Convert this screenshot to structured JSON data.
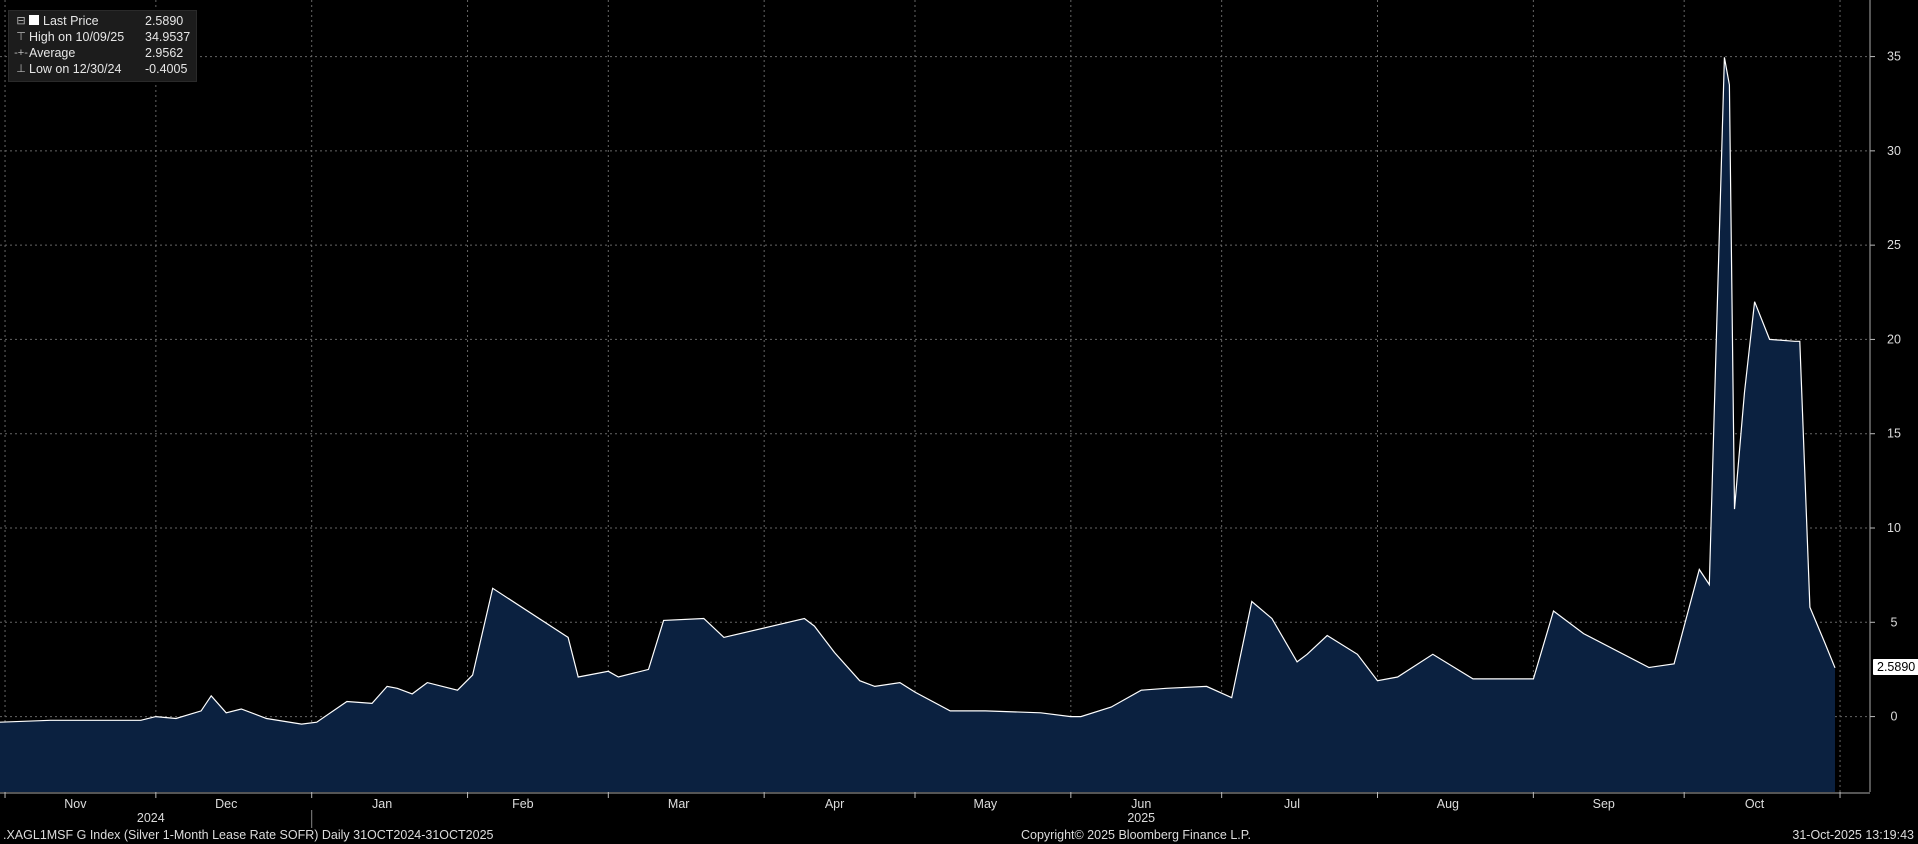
{
  "legend": {
    "items": [
      {
        "label": "Last Price",
        "value": "2.5890"
      },
      {
        "label": "High on 10/09/25",
        "value": "34.9537"
      },
      {
        "label": "Average",
        "value": "2.9562"
      },
      {
        "label": "Low on 12/30/24",
        "value": "-0.4005"
      }
    ]
  },
  "footer": {
    "left": ".XAGL1MSF G Index (Silver 1-Month Lease Rate SOFR) Daily 31OCT2024-31OCT2025",
    "center": "Copyright© 2025 Bloomberg Finance L.P.",
    "right": "31-Oct-2025 13:19:43"
  },
  "chart_data": {
    "type": "area",
    "colors": {
      "line": "#ffffff",
      "fill": "#0b2140",
      "grid": "#666666",
      "background": "#000000"
    },
    "ylim": [
      -4,
      38
    ],
    "yticks": [
      0,
      5,
      10,
      15,
      20,
      25,
      30,
      35
    ],
    "x_range": [
      "2024-10-31",
      "2025-10-31"
    ],
    "month_ticks": [
      {
        "label": "Nov",
        "date": "2024-11-15"
      },
      {
        "label": "Dec",
        "date": "2024-12-15"
      },
      {
        "label": "Jan",
        "date": "2025-01-15"
      },
      {
        "label": "Feb",
        "date": "2025-02-12"
      },
      {
        "label": "Mar",
        "date": "2025-03-15"
      },
      {
        "label": "Apr",
        "date": "2025-04-15"
      },
      {
        "label": "May",
        "date": "2025-05-15"
      },
      {
        "label": "Jun",
        "date": "2025-06-15"
      },
      {
        "label": "Jul",
        "date": "2025-07-15"
      },
      {
        "label": "Aug",
        "date": "2025-08-15"
      },
      {
        "label": "Sep",
        "date": "2025-09-15"
      },
      {
        "label": "Oct",
        "date": "2025-10-15"
      }
    ],
    "year_labels": [
      {
        "label": "2024",
        "date": "2024-11-30"
      },
      {
        "label": "2025",
        "date": "2025-06-15"
      }
    ],
    "last_value_label": "2.5890",
    "series": [
      {
        "dates": [
          "2024-10-31",
          "2024-11-10",
          "2024-11-28",
          "2024-12-01",
          "2024-12-05",
          "2024-12-10",
          "2024-12-12",
          "2024-12-15",
          "2024-12-18",
          "2024-12-23",
          "2024-12-30",
          "2025-01-02",
          "2025-01-08",
          "2025-01-13",
          "2025-01-16",
          "2025-01-18",
          "2025-01-21",
          "2025-01-24",
          "2025-01-30",
          "2025-02-02",
          "2025-02-06",
          "2025-02-21",
          "2025-02-23",
          "2025-03-01",
          "2025-03-03",
          "2025-03-09",
          "2025-03-12",
          "2025-03-20",
          "2025-03-24",
          "2025-04-09",
          "2025-04-11",
          "2025-04-15",
          "2025-04-20",
          "2025-04-23",
          "2025-04-28",
          "2025-05-01",
          "2025-05-08",
          "2025-05-15",
          "2025-05-26",
          "2025-06-01",
          "2025-06-03",
          "2025-06-09",
          "2025-06-15",
          "2025-06-20",
          "2025-06-28",
          "2025-07-03",
          "2025-07-07",
          "2025-07-11",
          "2025-07-16",
          "2025-07-18",
          "2025-07-22",
          "2025-07-28",
          "2025-08-01",
          "2025-08-05",
          "2025-08-12",
          "2025-08-20",
          "2025-09-01",
          "2025-09-05",
          "2025-09-11",
          "2025-09-24",
          "2025-09-29",
          "2025-10-04",
          "2025-10-06",
          "2025-10-09",
          "2025-10-10",
          "2025-10-11",
          "2025-10-13",
          "2025-10-15",
          "2025-10-18",
          "2025-10-23",
          "2025-10-24",
          "2025-10-26",
          "2025-10-29",
          "2025-10-31"
        ],
        "values": [
          -0.3,
          -0.2,
          -0.2,
          0.0,
          -0.1,
          0.3,
          1.1,
          0.2,
          0.4,
          -0.1,
          -0.4,
          -0.3,
          0.8,
          0.7,
          1.6,
          1.5,
          1.2,
          1.8,
          1.4,
          2.2,
          6.8,
          4.2,
          2.1,
          2.4,
          2.1,
          2.5,
          5.1,
          5.2,
          4.2,
          5.2,
          4.8,
          3.4,
          1.9,
          1.6,
          1.8,
          1.3,
          0.3,
          0.3,
          0.2,
          0.0,
          0.0,
          0.5,
          1.4,
          1.5,
          1.6,
          1.0,
          6.1,
          5.2,
          2.9,
          3.3,
          4.3,
          3.3,
          1.9,
          2.1,
          3.3,
          2.0,
          2.0,
          5.6,
          4.4,
          2.6,
          2.8,
          7.8,
          7.0,
          34.9537,
          33.5,
          11.0,
          17.2,
          22.0,
          20.0,
          19.9,
          19.9,
          5.8,
          3.9,
          2.589
        ]
      }
    ]
  }
}
